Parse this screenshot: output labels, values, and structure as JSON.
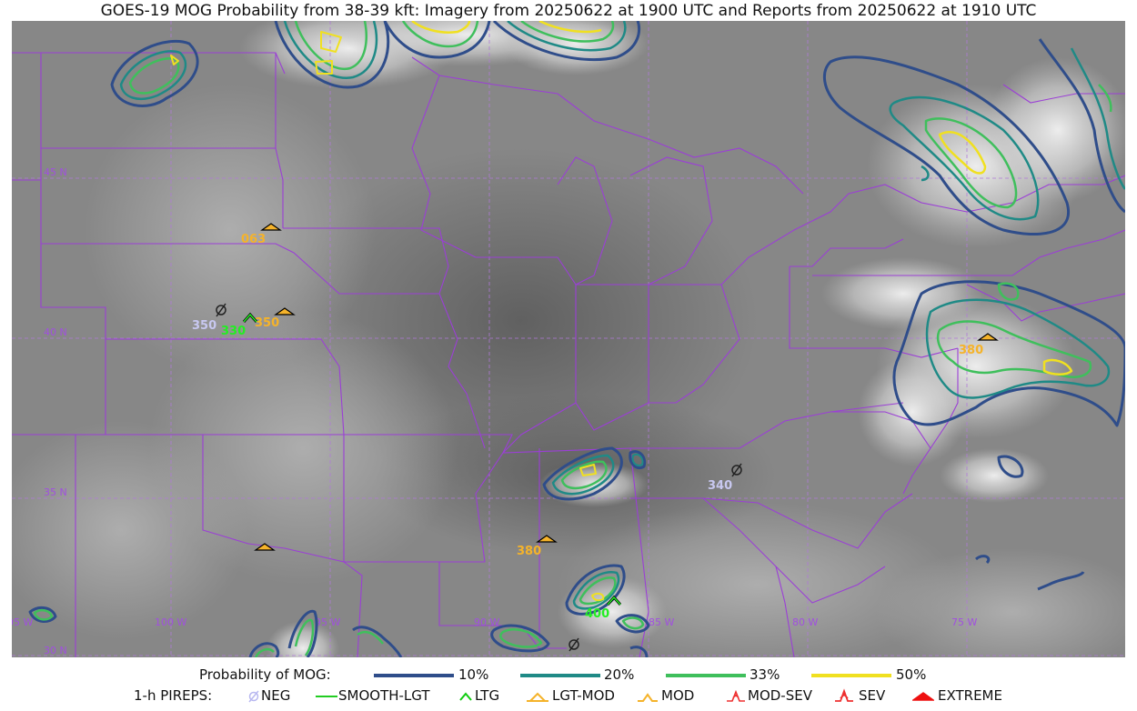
{
  "title": "GOES-19 MOG Probability from 38-39 kft: Imagery from 20250622 at 1900 UTC and Reports from 20250622 at 1910 UTC",
  "map": {
    "lat_labels": [
      "45 N",
      "40 N",
      "35 N",
      "30 N"
    ],
    "lon_labels": [
      "105 W",
      "100 W",
      "95 W",
      "90 W",
      "85 W",
      "80 W",
      "75 W"
    ],
    "colors": {
      "background": "#8a8a8a",
      "borders": "#9b3fd6",
      "grid": "#b07ad8"
    },
    "pireps": [
      {
        "label": "063",
        "type": "lgt-mod",
        "color": "#f5b32a"
      },
      {
        "label": "350",
        "type": "neg",
        "color": "#c8c8f0"
      },
      {
        "label": "330",
        "type": "ltg",
        "color": "#22ee22"
      },
      {
        "label": "350",
        "type": "lgt-mod",
        "color": "#f5b32a"
      },
      {
        "label": "380",
        "type": "lgt-mod",
        "color": "#f5b32a"
      },
      {
        "label": "340",
        "type": "neg",
        "color": "#c8c8f0"
      },
      {
        "label": "380",
        "type": "lgt-mod",
        "color": "#f5b32a"
      },
      {
        "label": "400",
        "type": "ltg",
        "color": "#22ee22"
      }
    ]
  },
  "legend": {
    "prob_title": "Probability of MOG:",
    "prob_levels": [
      {
        "label": "10%",
        "color": "#2f4d8a"
      },
      {
        "label": "20%",
        "color": "#1f8a86"
      },
      {
        "label": "33%",
        "color": "#3fbf5c"
      },
      {
        "label": "50%",
        "color": "#f0e020"
      }
    ],
    "pirep_title": "1-h PIREPS:",
    "pirep_types": [
      {
        "label": "NEG",
        "color": "#b8b8f0"
      },
      {
        "label": "SMOOTH-LGT",
        "color": "#22cc22"
      },
      {
        "label": "LTG",
        "color": "#11cc11"
      },
      {
        "label": "LGT-MOD",
        "color": "#f5b32a"
      },
      {
        "label": "MOD",
        "color": "#f5b32a"
      },
      {
        "label": "MOD-SEV",
        "color": "#ee3030"
      },
      {
        "label": "SEV",
        "color": "#ee3030"
      },
      {
        "label": "EXTREME",
        "color": "#ee1010"
      }
    ]
  }
}
